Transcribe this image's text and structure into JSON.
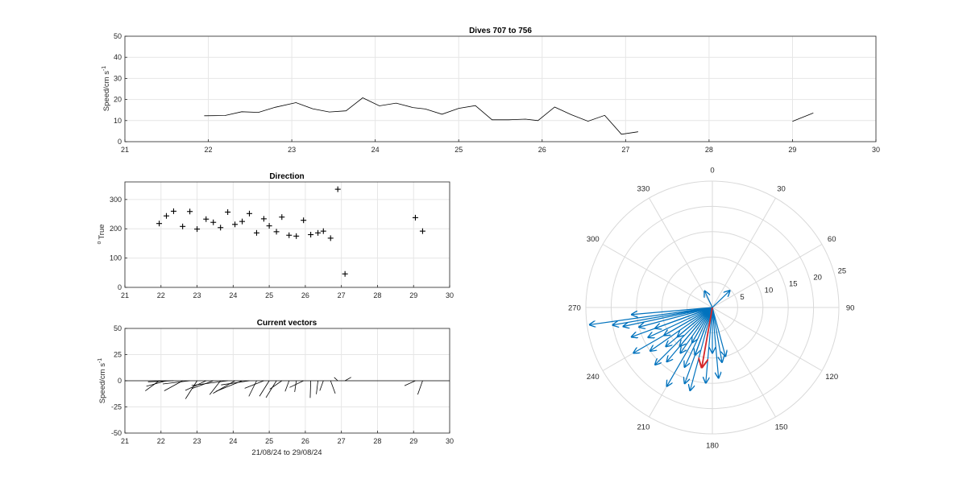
{
  "chart_data": [
    {
      "id": "speed",
      "type": "line",
      "title": "Dives 707 to 756",
      "xlabel": "",
      "ylabel_main": "Speed/cm s",
      "ylabel_sup": "-1",
      "xlim": [
        21,
        30
      ],
      "ylim": [
        0,
        50
      ],
      "xticks": [
        21,
        22,
        23,
        24,
        25,
        26,
        27,
        28,
        29,
        30
      ],
      "yticks": [
        0,
        10,
        20,
        30,
        40,
        50
      ],
      "grid": true,
      "color": "#000000",
      "segments": [
        [
          [
            21.95,
            12.3
          ],
          [
            22.2,
            12.4
          ],
          [
            22.4,
            14.2
          ],
          [
            22.6,
            13.9
          ],
          [
            22.8,
            16.3
          ],
          [
            23.05,
            18.5
          ],
          [
            23.25,
            15.6
          ],
          [
            23.45,
            14.1
          ],
          [
            23.65,
            14.6
          ],
          [
            23.85,
            20.8
          ],
          [
            24.05,
            17.0
          ],
          [
            24.25,
            18.3
          ],
          [
            24.45,
            16.2
          ],
          [
            24.6,
            15.5
          ],
          [
            24.8,
            13.0
          ],
          [
            25.0,
            15.8
          ],
          [
            25.2,
            17.1
          ],
          [
            25.4,
            10.4
          ],
          [
            25.6,
            10.4
          ],
          [
            25.8,
            10.7
          ],
          [
            25.95,
            10.0
          ],
          [
            26.15,
            16.4
          ],
          [
            26.35,
            12.8
          ],
          [
            26.55,
            9.7
          ],
          [
            26.75,
            12.5
          ],
          [
            26.95,
            3.5
          ],
          [
            27.15,
            4.7
          ]
        ],
        [
          [
            29.0,
            9.6
          ],
          [
            29.25,
            13.6
          ]
        ]
      ]
    },
    {
      "id": "direction",
      "type": "scatter",
      "title": "Direction",
      "xlabel": "",
      "ylabel_main": "True",
      "ylabel_sup": "o",
      "xlim": [
        21,
        30
      ],
      "ylim": [
        0,
        360
      ],
      "xticks": [
        21,
        22,
        23,
        24,
        25,
        26,
        27,
        28,
        29,
        30
      ],
      "yticks": [
        0,
        100,
        200,
        300
      ],
      "grid": true,
      "marker": "+",
      "x": [
        21.95,
        22.15,
        22.35,
        22.6,
        22.8,
        23.0,
        23.25,
        23.45,
        23.65,
        23.85,
        24.05,
        24.25,
        24.45,
        24.65,
        24.85,
        25.0,
        25.2,
        25.35,
        25.55,
        25.75,
        25.95,
        26.15,
        26.35,
        26.5,
        26.7,
        26.9,
        27.1,
        29.05,
        29.25
      ],
      "y": [
        218,
        244,
        260,
        208,
        259,
        199,
        233,
        222,
        204,
        257,
        215,
        225,
        252,
        186,
        234,
        210,
        190,
        240,
        178,
        175,
        229,
        180,
        186,
        192,
        168,
        335,
        46,
        238,
        192
      ]
    },
    {
      "id": "vectors",
      "type": "line",
      "title": "Current vectors",
      "xlabel": "21/08/24 to 29/08/24",
      "ylabel_main": "Speed/cm s",
      "ylabel_sup": "-1",
      "xlim": [
        21,
        30
      ],
      "ylim": [
        -50,
        50
      ],
      "xticks": [
        21,
        22,
        23,
        24,
        25,
        26,
        27,
        28,
        29,
        30
      ],
      "yticks": [
        -50,
        -25,
        0,
        25,
        50
      ],
      "grid": true,
      "color": "#000000",
      "x_per_unit": 0.05,
      "sticks": [
        {
          "t": 21.95,
          "u": -7.7,
          "v": -9.7
        },
        {
          "t": 22.15,
          "u": -11.1,
          "v": -5.3
        },
        {
          "t": 22.35,
          "u": -14.2,
          "v": -1.0
        },
        {
          "t": 22.6,
          "u": -10.2,
          "v": -9.6
        },
        {
          "t": 22.8,
          "u": -15.0,
          "v": -3.1
        },
        {
          "t": 23.0,
          "u": -6.4,
          "v": -17.3
        },
        {
          "t": 23.25,
          "u": -11.5,
          "v": -9.2
        },
        {
          "t": 23.45,
          "u": -11.9,
          "v": -7.5
        },
        {
          "t": 23.65,
          "u": -6.0,
          "v": -13.3
        },
        {
          "t": 23.85,
          "u": -20.0,
          "v": -4.5
        },
        {
          "t": 24.05,
          "u": -12.1,
          "v": -12.0
        },
        {
          "t": 24.25,
          "u": -14.6,
          "v": -10.2
        },
        {
          "t": 24.45,
          "u": -15.7,
          "v": -4.0
        },
        {
          "t": 24.65,
          "u": -4.3,
          "v": -14.9
        },
        {
          "t": 24.85,
          "u": -10.6,
          "v": -7.2
        },
        {
          "t": 25.0,
          "u": -5.4,
          "v": -14.8
        },
        {
          "t": 25.2,
          "u": -5.8,
          "v": -16.1
        },
        {
          "t": 25.35,
          "u": -6.7,
          "v": -8.0
        },
        {
          "t": 25.55,
          "u": -2.2,
          "v": -10.2
        },
        {
          "t": 25.75,
          "u": -0.9,
          "v": -10.7
        },
        {
          "t": 25.95,
          "u": -7.7,
          "v": -6.4
        },
        {
          "t": 26.15,
          "u": -0.3,
          "v": -16.4
        },
        {
          "t": 26.35,
          "u": -0.9,
          "v": -12.8
        },
        {
          "t": 26.5,
          "u": -2.0,
          "v": -9.5
        },
        {
          "t": 26.7,
          "u": 2.6,
          "v": -12.2
        },
        {
          "t": 26.9,
          "u": -2.0,
          "v": 3.2
        },
        {
          "t": 27.1,
          "u": 3.4,
          "v": 3.3
        },
        {
          "t": 29.05,
          "u": -6.0,
          "v": -4.7
        },
        {
          "t": 29.25,
          "u": -2.7,
          "v": -13.2
        }
      ]
    },
    {
      "id": "polar",
      "type": "polar-vectors",
      "title": "",
      "rlim": [
        0,
        25
      ],
      "rticks": [
        5,
        10,
        15,
        20,
        25
      ],
      "theta_labels": [
        "0",
        "30",
        "60",
        "90",
        "120",
        "150",
        "180",
        "210",
        "240",
        "270",
        "300",
        "330"
      ],
      "theta_zero": "top",
      "theta_direction": "clockwise",
      "grid": true,
      "color": "#0072bd",
      "mean_color": "#d62728",
      "mean": {
        "dir": 190,
        "speed": 12.0
      },
      "arrows": [
        {
          "dir": 180,
          "speed": 9
        },
        {
          "dir": 190,
          "speed": 12
        },
        {
          "dir": 200,
          "speed": 10
        },
        {
          "dir": 205,
          "speed": 13
        },
        {
          "dir": 210,
          "speed": 8
        },
        {
          "dir": 215,
          "speed": 11
        },
        {
          "dir": 220,
          "speed": 14
        },
        {
          "dir": 225,
          "speed": 16
        },
        {
          "dir": 230,
          "speed": 12
        },
        {
          "dir": 235,
          "speed": 15
        },
        {
          "dir": 240,
          "speed": 18
        },
        {
          "dir": 245,
          "speed": 14
        },
        {
          "dir": 250,
          "speed": 17
        },
        {
          "dir": 255,
          "speed": 15
        },
        {
          "dir": 260,
          "speed": 20
        },
        {
          "dir": 265,
          "speed": 16
        },
        {
          "dir": 185,
          "speed": 15
        },
        {
          "dir": 195,
          "speed": 17
        },
        {
          "dir": 200,
          "speed": 16
        },
        {
          "dir": 210,
          "speed": 18
        },
        {
          "dir": 175,
          "speed": 14
        },
        {
          "dir": 170,
          "speed": 11
        },
        {
          "dir": 165,
          "speed": 10
        },
        {
          "dir": 220,
          "speed": 10
        },
        {
          "dir": 230,
          "speed": 9
        },
        {
          "dir": 240,
          "speed": 11
        },
        {
          "dir": 250,
          "speed": 12
        },
        {
          "dir": 258,
          "speed": 18
        },
        {
          "dir": 335,
          "speed": 3.6
        },
        {
          "dir": 46,
          "speed": 4.8
        },
        {
          "dir": 262,
          "speed": 24.5
        }
      ]
    }
  ]
}
